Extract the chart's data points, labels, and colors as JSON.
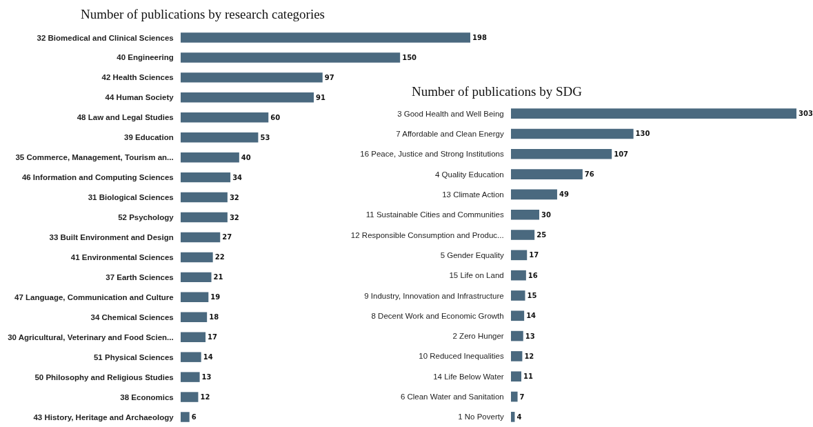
{
  "chart_data": [
    {
      "type": "bar",
      "orientation": "horizontal",
      "title": "Number of publications by research categories",
      "categories": [
        "32 Biomedical and Clinical Sciences",
        "40 Engineering",
        "42 Health Sciences",
        "44 Human Society",
        "48 Law and Legal Studies",
        "39 Education",
        "35 Commerce, Management, Tourism an...",
        "46 Information and Computing Sciences",
        "31 Biological Sciences",
        "52 Psychology",
        "33 Built Environment and Design",
        "41 Environmental Sciences",
        "37 Earth Sciences",
        "47 Language, Communication and Culture",
        "34 Chemical Sciences",
        "30 Agricultural, Veterinary and Food Scien...",
        "51 Physical Sciences",
        "50 Philosophy and Religious Studies",
        "38 Economics",
        "43 History, Heritage and Archaeology"
      ],
      "values": [
        198,
        150,
        97,
        91,
        60,
        53,
        40,
        34,
        32,
        32,
        27,
        22,
        21,
        19,
        18,
        17,
        14,
        13,
        12,
        6
      ],
      "color": "#4a697f",
      "data_labels": true,
      "xlim": [
        0,
        198
      ],
      "tick_labels": "y"
    },
    {
      "type": "bar",
      "orientation": "horizontal",
      "title": "Number of publications by SDG",
      "categories": [
        "3 Good Health and Well Being",
        "7 Affordable and Clean Energy",
        "16 Peace, Justice and Strong Institutions",
        "4 Quality Education",
        "13 Climate Action",
        "11 Sustainable Cities and Communities",
        "12 Responsible Consumption and Produc...",
        "5 Gender Equality",
        "15 Life on Land",
        "9 Industry, Innovation and Infrastructure",
        "8 Decent Work and Economic Growth",
        "2 Zero Hunger",
        "10 Reduced Inequalities",
        "14 Life Below Water",
        "6 Clean Water and Sanitation",
        "1 No Poverty"
      ],
      "values": [
        303,
        130,
        107,
        76,
        49,
        30,
        25,
        17,
        16,
        15,
        14,
        13,
        12,
        11,
        7,
        4
      ],
      "color": "#4a697f",
      "data_labels": true,
      "xlim": [
        0,
        303
      ],
      "tick_labels": "y"
    }
  ]
}
